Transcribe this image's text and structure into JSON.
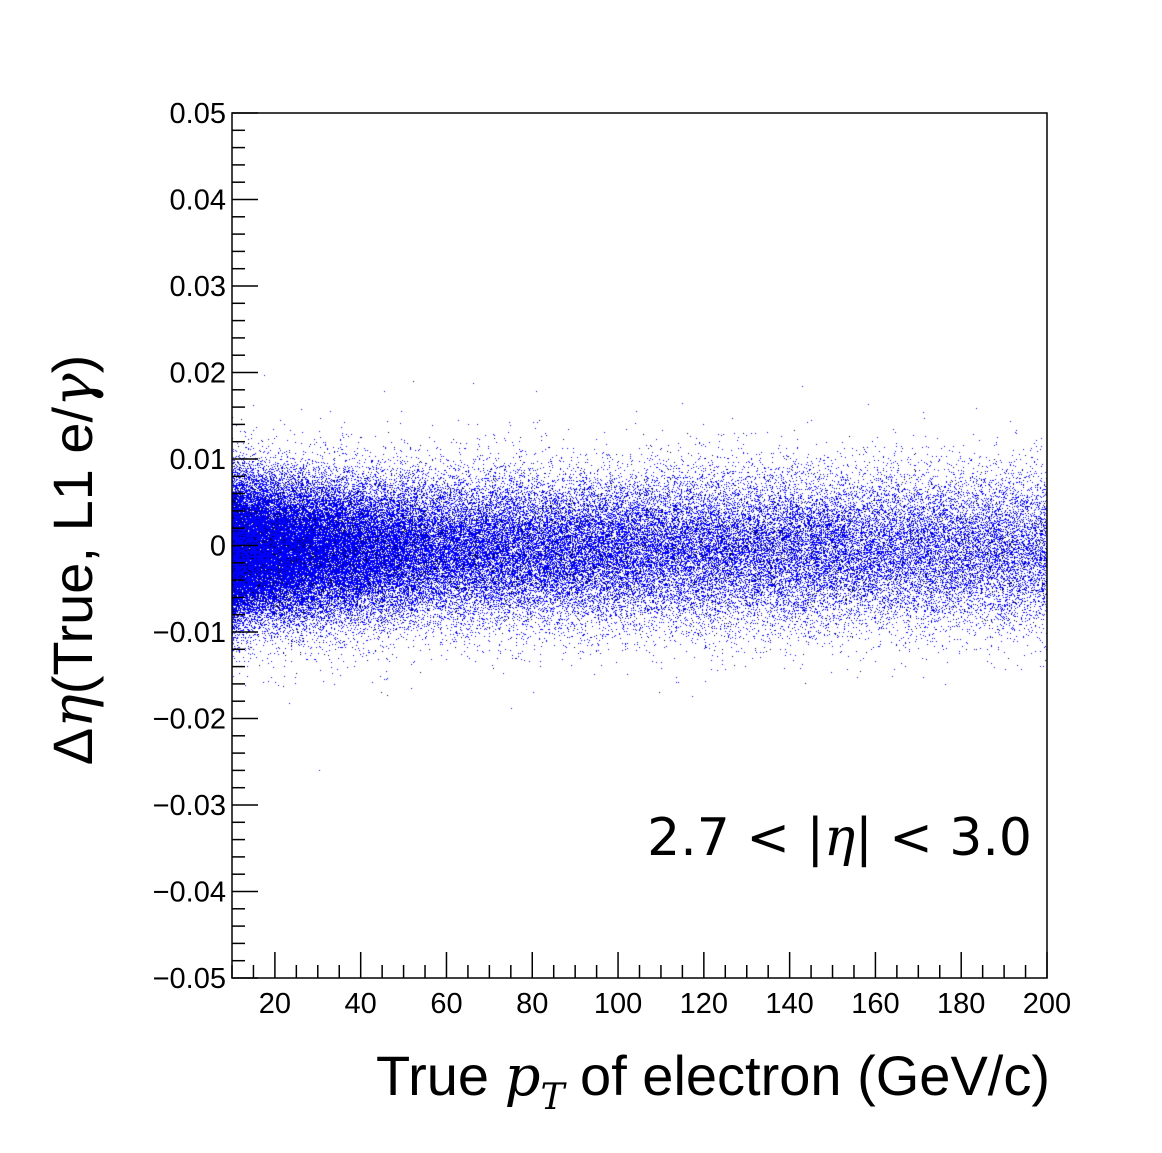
{
  "chart_data": {
    "type": "scatter",
    "xlabel_parts": {
      "pre": "True ",
      "var": "p",
      "sub": "T",
      "post": " of electron (GeV/c)"
    },
    "ylabel_parts": {
      "pre": "Δ",
      "var": "η",
      "mid": "(True, L1 e/",
      "var2": "γ",
      "post": ")"
    },
    "annotation_parts": {
      "left": "2.7 < |",
      "var": "η",
      "right": "| < 3.0"
    },
    "xlim": [
      10,
      200
    ],
    "ylim": [
      -0.05,
      0.05
    ],
    "x_ticks": [
      20,
      40,
      60,
      80,
      100,
      120,
      140,
      160,
      180,
      200
    ],
    "x_tick_labels": [
      "20",
      "40",
      "60",
      "80",
      "100",
      "120",
      "140",
      "160",
      "180",
      "200"
    ],
    "y_ticks": [
      0.05,
      0.04,
      0.03,
      0.02,
      0.01,
      0,
      -0.01,
      -0.02,
      -0.03,
      -0.04,
      -0.05
    ],
    "y_tick_labels": [
      "0.05",
      "0.04",
      "0.03",
      "0.02",
      "0.01",
      "0",
      "−0.01",
      "−0.02",
      "−0.03",
      "−0.04",
      "−0.05"
    ],
    "series": [
      {
        "color": "#0000ff",
        "secondary_color": "#000033",
        "distribution": {
          "x_range": [
            10,
            200
          ],
          "y_center": -0.0005,
          "y_spread_low_pt": 0.004,
          "y_spread_high_pt": 0.0045,
          "y_extent_typical": [
            -0.012,
            0.012
          ]
        }
      }
    ],
    "grid": false,
    "legend": "none"
  }
}
